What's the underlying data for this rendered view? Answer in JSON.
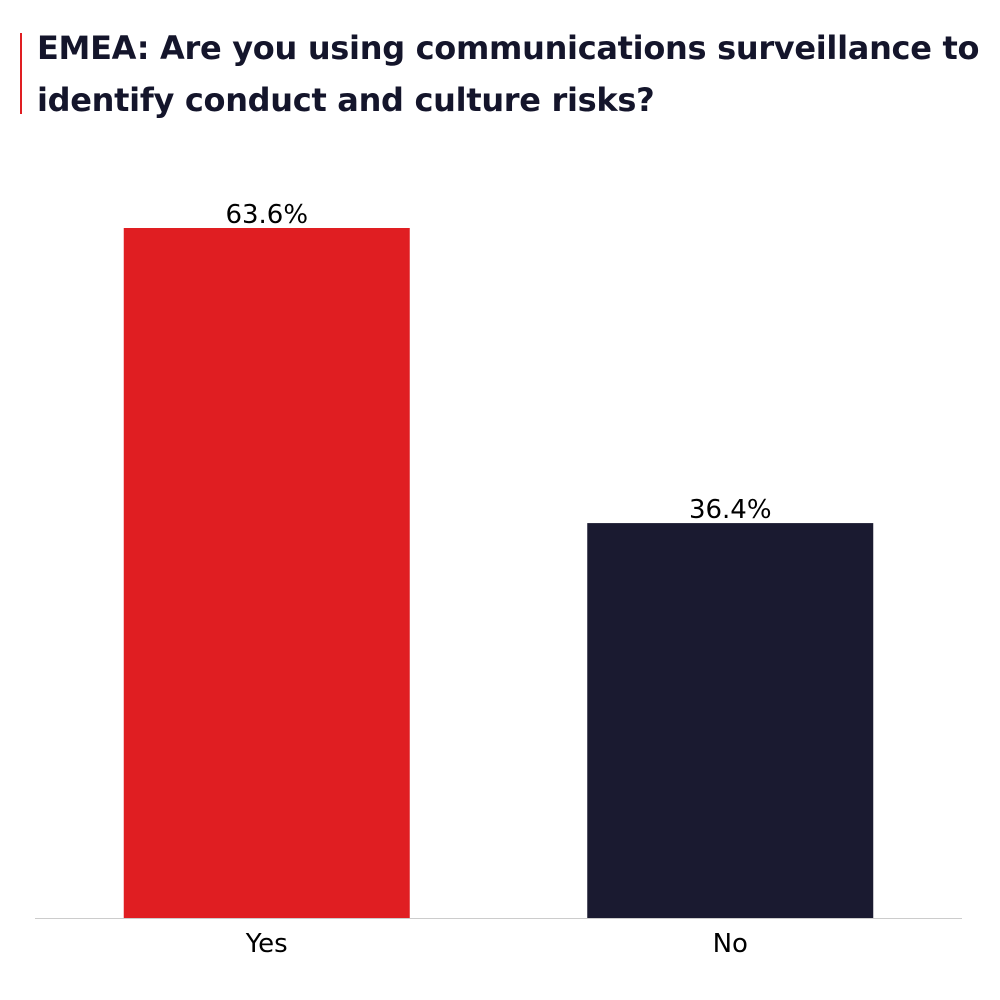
{
  "chart_data": {
    "type": "bar",
    "title": "EMEA: Are you using communications surveillance to identify conduct and culture risks?",
    "categories": [
      "Yes",
      "No"
    ],
    "values": [
      63.6,
      36.4
    ],
    "value_labels": [
      "63.6%",
      "36.4%"
    ],
    "colors": [
      "#e01e22",
      "#1a1a30"
    ],
    "xlabel": "",
    "ylabel": "",
    "ylim": [
      0,
      63.6
    ],
    "grid": false,
    "legend": "none"
  }
}
